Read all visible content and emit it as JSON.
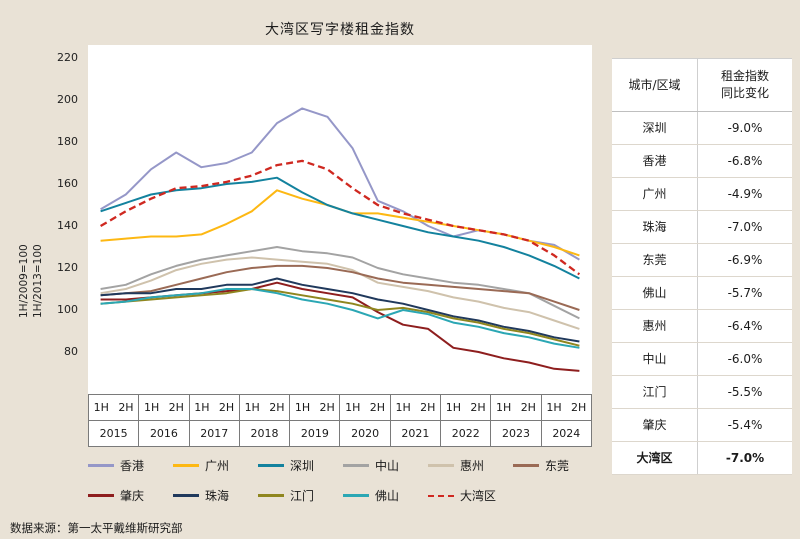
{
  "title": "大湾区写字楼租金指数",
  "footer": "数据来源：第一太平戴维斯研究部",
  "colors": {
    "page_background": "#e9e2d6",
    "plot_background": "#ffffff"
  },
  "y_axis": {
    "note_line1": "1H/2009=100",
    "note_line2": "1H/2013=100"
  },
  "side_table": {
    "header_col1": "城市/区域",
    "header_col2_line1": "租金指数",
    "header_col2_line2": "同比变化",
    "rows": [
      {
        "city": "深圳",
        "change": "-9.0%",
        "bold": false
      },
      {
        "city": "香港",
        "change": "-6.8%",
        "bold": false
      },
      {
        "city": "广州",
        "change": "-4.9%",
        "bold": false
      },
      {
        "city": "珠海",
        "change": "-7.0%",
        "bold": false
      },
      {
        "city": "东莞",
        "change": "-6.9%",
        "bold": false
      },
      {
        "city": "佛山",
        "change": "-5.7%",
        "bold": false
      },
      {
        "city": "惠州",
        "change": "-6.4%",
        "bold": false
      },
      {
        "city": "中山",
        "change": "-6.0%",
        "bold": false
      },
      {
        "city": "江门",
        "change": "-5.5%",
        "bold": false
      },
      {
        "city": "肇庆",
        "change": "-5.4%",
        "bold": false
      },
      {
        "city": "大湾区",
        "change": "-7.0%",
        "bold": true
      }
    ]
  },
  "chart_data": {
    "type": "line",
    "title": "大湾区写字楼租金指数",
    "x_years": [
      "2015",
      "2016",
      "2017",
      "2018",
      "2019",
      "2020",
      "2021",
      "2022",
      "2023",
      "2024"
    ],
    "x_halves": [
      "1H",
      "2H"
    ],
    "ylim": [
      60,
      220
    ],
    "yticks": [
      220,
      200,
      180,
      160,
      140,
      120,
      100,
      80
    ],
    "grid": false,
    "legend_position": "bottom",
    "series": [
      {
        "name": "香港",
        "color": "#9597c8",
        "dash": false,
        "values": [
          148,
          155,
          167,
          175,
          168,
          170,
          175,
          189,
          196,
          192,
          177,
          152,
          147,
          140,
          135,
          138,
          136,
          133,
          131,
          124
        ]
      },
      {
        "name": "广州",
        "color": "#fdb813",
        "dash": false,
        "values": [
          133,
          134,
          135,
          135,
          136,
          141,
          147,
          157,
          153,
          150,
          146,
          146,
          144,
          142,
          140,
          138,
          136,
          133,
          130,
          126
        ]
      },
      {
        "name": "深圳",
        "color": "#13829e",
        "dash": false,
        "values": [
          147,
          151,
          155,
          157,
          158,
          160,
          161,
          163,
          156,
          150,
          146,
          143,
          140,
          137,
          135,
          133,
          130,
          126,
          121,
          115
        ]
      },
      {
        "name": "中山",
        "color": "#a3a3a3",
        "dash": false,
        "values": [
          110,
          112,
          117,
          121,
          124,
          126,
          128,
          130,
          128,
          127,
          125,
          120,
          117,
          115,
          113,
          112,
          110,
          108,
          102,
          96
        ]
      },
      {
        "name": "惠州",
        "color": "#cfc2ac",
        "dash": false,
        "values": [
          108,
          110,
          114,
          119,
          122,
          124,
          125,
          124,
          123,
          122,
          119,
          113,
          111,
          109,
          106,
          104,
          101,
          99,
          95,
          91
        ]
      },
      {
        "name": "东莞",
        "color": "#9a6a55",
        "dash": false,
        "values": [
          107,
          108,
          109,
          112,
          115,
          118,
          120,
          121,
          121,
          120,
          118,
          115,
          113,
          112,
          111,
          110,
          109,
          108,
          104,
          100
        ]
      },
      {
        "name": "肇庆",
        "color": "#8e1e1e",
        "dash": false,
        "values": [
          105,
          105,
          106,
          107,
          108,
          109,
          110,
          113,
          110,
          108,
          106,
          99,
          93,
          91,
          82,
          80,
          77,
          75,
          72,
          71
        ]
      },
      {
        "name": "珠海",
        "color": "#20395c",
        "dash": false,
        "values": [
          107,
          108,
          108,
          110,
          110,
          112,
          112,
          115,
          112,
          110,
          108,
          105,
          103,
          100,
          97,
          95,
          92,
          90,
          87,
          85
        ]
      },
      {
        "name": "江门",
        "color": "#8f861f",
        "dash": false,
        "values": [
          103,
          104,
          105,
          106,
          107,
          108,
          110,
          109,
          107,
          105,
          103,
          100,
          101,
          99,
          96,
          94,
          91,
          89,
          86,
          83
        ]
      },
      {
        "name": "佛山",
        "color": "#2ba7b4",
        "dash": false,
        "values": [
          103,
          104,
          106,
          107,
          108,
          110,
          110,
          108,
          105,
          103,
          100,
          96,
          100,
          98,
          94,
          92,
          89,
          87,
          84,
          82
        ]
      },
      {
        "name": "大湾区",
        "color": "#cf2820",
        "dash": true,
        "values": [
          140,
          147,
          153,
          158,
          159,
          161,
          164,
          169,
          171,
          167,
          158,
          150,
          146,
          143,
          140,
          138,
          136,
          133,
          126,
          117
        ]
      }
    ]
  }
}
